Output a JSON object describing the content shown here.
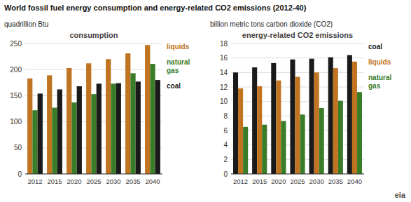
{
  "chart_data": [
    {
      "type": "bar",
      "title": "World fossil fuel energy consumption and energy-related CO2 emissions (2012-40)",
      "ylabel": "quadrillion Btu",
      "annotations": [
        "consumption"
      ],
      "categories": [
        "2012",
        "2015",
        "2020",
        "2025",
        "2030",
        "2035",
        "2040"
      ],
      "series": [
        {
          "name": "liquids",
          "color": "#c07320",
          "values": [
            183,
            189,
            203,
            212,
            220,
            231,
            247
          ]
        },
        {
          "name": "natural gas",
          "color": "#3a7d28",
          "values": [
            122,
            127,
            137,
            153,
            173,
            193,
            211
          ]
        },
        {
          "name": "coal",
          "color": "#1a1a1a",
          "values": [
            154,
            162,
            168,
            173,
            174,
            177,
            180
          ]
        }
      ],
      "ylim": [
        0,
        250
      ],
      "yticks": [
        0,
        50,
        100,
        150,
        200,
        250
      ],
      "grid": true,
      "legend": "right"
    },
    {
      "type": "bar",
      "ylabel": "billion metric tons carbon dioxide (CO2)",
      "annotations": [
        "energy-related CO2 emissions",
        "eia"
      ],
      "categories": [
        "2012",
        "2015",
        "2020",
        "2025",
        "2030",
        "2035",
        "2040"
      ],
      "series": [
        {
          "name": "coal",
          "color": "#1a1a1a",
          "values": [
            14.0,
            14.7,
            15.3,
            15.8,
            15.9,
            16.1,
            16.4
          ]
        },
        {
          "name": "liquids",
          "color": "#c07320",
          "values": [
            11.8,
            12.1,
            12.9,
            13.4,
            14.0,
            14.6,
            15.5
          ]
        },
        {
          "name": "natural gas",
          "color": "#3a7d28",
          "values": [
            6.5,
            6.8,
            7.3,
            8.2,
            9.1,
            10.1,
            11.3
          ]
        }
      ],
      "ylim": [
        0,
        18
      ],
      "yticks": [
        0,
        2,
        4,
        6,
        8,
        10,
        12,
        14,
        16,
        18
      ],
      "grid": true,
      "legend": "right"
    }
  ]
}
